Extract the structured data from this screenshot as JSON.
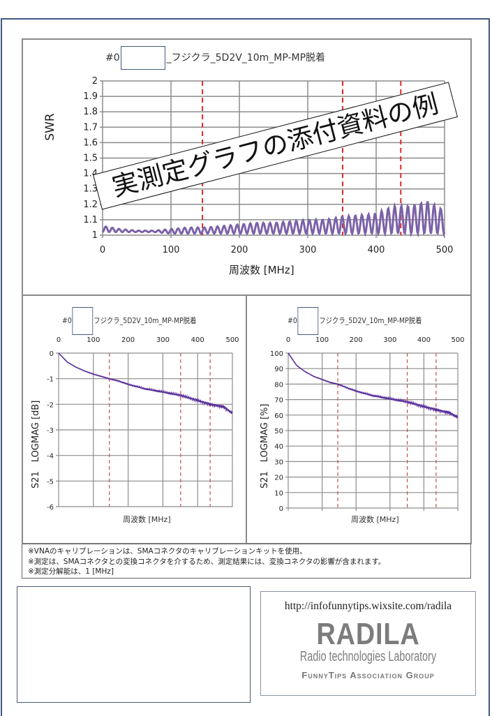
{
  "main_chart": {
    "title_prefix": "#0",
    "title_suffix": "_フジクラ_5D2V_10m_MP-MP脱着",
    "ylabel": "SWR",
    "xlabel": "周波数 [MHz]",
    "yticks": [
      "2",
      "1.9",
      "1.8",
      "1.7",
      "1.6",
      "1.5",
      "1.4",
      "1.3",
      "1.2",
      "1.1",
      "1"
    ],
    "xticks": [
      "0",
      "100",
      "200",
      "300",
      "400",
      "500"
    ]
  },
  "stamp": {
    "text": "実測定グラフの添付資料の例"
  },
  "left_chart": {
    "title_prefix": "#0",
    "title_suffix": "フジクラ_5D2V_10m_MP-MP脱着",
    "ylabel": "S21　LOGMAG [dB]",
    "xlabel": "周波数 [MHz]",
    "yticks": [
      "0",
      "-1",
      "-2",
      "-3",
      "-4",
      "-5",
      "-6"
    ],
    "xticks": [
      "0",
      "100",
      "200",
      "300",
      "400",
      "500"
    ]
  },
  "right_chart": {
    "title_prefix": "#0",
    "title_suffix": "フジクラ_5D2V_10m_MP-MP脱着",
    "ylabel": "S21　LOGMAG [%]",
    "xlabel": "周波数 [MHz]",
    "yticks": [
      "100",
      "90",
      "80",
      "70",
      "60",
      "50",
      "40",
      "30",
      "20",
      "10",
      "0"
    ],
    "xticks": [
      "0",
      "100",
      "200",
      "300",
      "400",
      "500"
    ]
  },
  "notes": [
    "※VNAのキャリブレーションは、SMAコネクタのキャリブレーションキットを使用。",
    "※測定は、SMAコネクタとの変換コネクタを介するため、測定結果には、変換コネクタの影響が含まれます。",
    "※測定分解能は、1 [MHz]"
  ],
  "logo": {
    "url": "http://infofunnytips.wixsite.com/radila",
    "name": "RADILA",
    "subtitle": "Radio technologies Laboratory",
    "group": "FunnyTips Association Group"
  },
  "colors": {
    "trace": "#7b62a8",
    "trace_dark": "#5a2f9a",
    "marker": "#e0282a",
    "marker_small": "#c0504d",
    "grid": "#8c8c8c"
  },
  "chart_data": [
    {
      "type": "line",
      "title": "#0□_フジクラ_5D2V_10m_MP-MP脱着",
      "xlabel": "周波数 [MHz]",
      "ylabel": "SWR",
      "xlim": [
        0,
        500
      ],
      "ylim": [
        1,
        2
      ],
      "grid": true,
      "markers_mhz": [
        146,
        351,
        436
      ],
      "series": [
        {
          "name": "SWR",
          "x": [
            0,
            25,
            50,
            75,
            100,
            125,
            150,
            175,
            200,
            225,
            250,
            275,
            300,
            325,
            350,
            375,
            400,
            425,
            450,
            475,
            500
          ],
          "envelope_max": [
            1.06,
            1.04,
            1.03,
            1.03,
            1.04,
            1.05,
            1.05,
            1.06,
            1.07,
            1.08,
            1.08,
            1.09,
            1.1,
            1.1,
            1.12,
            1.13,
            1.14,
            1.19,
            1.19,
            1.22,
            1.16
          ],
          "envelope_min": [
            1.02,
            1.02,
            1.02,
            1.02,
            1.01,
            1.01,
            1.01,
            1.01,
            1.01,
            1.01,
            1.01,
            1.01,
            1.01,
            1.01,
            1.01,
            1.01,
            1.01,
            1.01,
            1.01,
            1.01,
            1.01
          ]
        }
      ]
    },
    {
      "type": "line",
      "title": "#0□フジクラ_5D2V_10m_MP-MP脱着",
      "xlabel": "周波数 [MHz]",
      "ylabel": "S21 LOGMAG [dB]",
      "xlim": [
        0,
        500
      ],
      "ylim": [
        -6,
        0
      ],
      "grid": true,
      "markers_mhz": [
        146,
        351,
        436
      ],
      "series": [
        {
          "name": "S21 dB",
          "x": [
            0,
            25,
            50,
            75,
            100,
            125,
            146,
            175,
            200,
            250,
            300,
            351,
            400,
            436,
            475,
            500
          ],
          "values": [
            0,
            -0.35,
            -0.55,
            -0.7,
            -0.82,
            -0.92,
            -1.0,
            -1.1,
            -1.22,
            -1.4,
            -1.52,
            -1.65,
            -1.85,
            -2.0,
            -2.1,
            -2.35
          ]
        }
      ]
    },
    {
      "type": "line",
      "title": "#0□フジクラ_5D2V_10m_MP-MP脱着",
      "xlabel": "周波数 [MHz]",
      "ylabel": "S21 LOGMAG [%]",
      "xlim": [
        0,
        500
      ],
      "ylim": [
        0,
        100
      ],
      "grid": true,
      "markers_mhz": [
        146,
        351,
        436
      ],
      "series": [
        {
          "name": "S21 %",
          "x": [
            0,
            25,
            50,
            75,
            100,
            125,
            146,
            175,
            200,
            250,
            300,
            351,
            400,
            436,
            475,
            500
          ],
          "values": [
            100,
            92,
            88,
            85,
            83,
            81,
            80,
            77.5,
            75.5,
            72.5,
            70.5,
            68.5,
            65.5,
            63.5,
            61.5,
            58.5
          ]
        }
      ]
    }
  ]
}
